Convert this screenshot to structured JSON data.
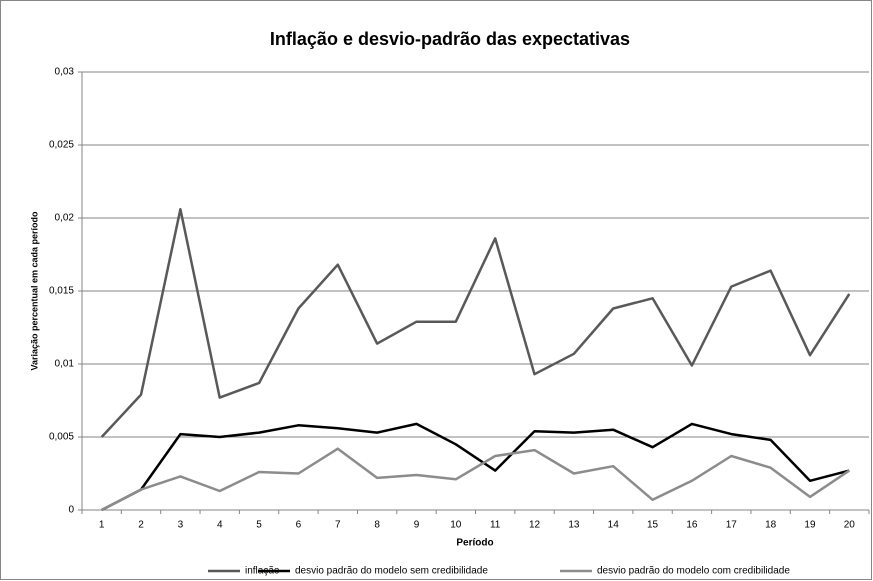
{
  "chart_data": {
    "type": "line",
    "title": "Inflação e desvio-padrão das expectativas",
    "x_label": "Período",
    "y_label": "Variação percentual em cada período",
    "categories": [
      "1",
      "2",
      "3",
      "4",
      "5",
      "6",
      "7",
      "8",
      "9",
      "10",
      "11",
      "12",
      "13",
      "14",
      "15",
      "16",
      "17",
      "18",
      "19",
      "20"
    ],
    "series": [
      {
        "name": "inflação",
        "color": "#595959",
        "values": [
          0.005,
          0.0079,
          0.0206,
          0.0077,
          0.0087,
          0.0138,
          0.0168,
          0.0114,
          0.0129,
          0.0129,
          0.0186,
          0.0093,
          0.0107,
          0.0138,
          0.0145,
          0.0099,
          0.0153,
          0.0164,
          0.0106,
          0.0148
        ]
      },
      {
        "name": "desvio padrão do modelo sem credibilidade",
        "color": "#000000",
        "values": [
          0,
          0.0014,
          0.0052,
          0.005,
          0.0053,
          0.0058,
          0.0056,
          0.0053,
          0.0059,
          0.0045,
          0.0027,
          0.0054,
          0.0053,
          0.0055,
          0.0043,
          0.0059,
          0.0052,
          0.0048,
          0.002,
          0.0027
        ]
      },
      {
        "name": "desvio padrão do modelo com credibilidade",
        "color": "#8c8c8c",
        "values": [
          0,
          0.0014,
          0.0023,
          0.0013,
          0.0026,
          0.0025,
          0.0042,
          0.0022,
          0.0024,
          0.0021,
          0.0037,
          0.0041,
          0.0025,
          0.003,
          0.0007,
          0.002,
          0.0037,
          0.0029,
          0.0009,
          0.0027
        ]
      }
    ],
    "ylim": [
      0,
      0.03
    ],
    "yticks": [
      0,
      {
        "value": 0.005,
        "label": "0,005"
      },
      {
        "value": 0.01,
        "label": "0,01"
      },
      {
        "value": 0.015,
        "label": "0,015"
      },
      {
        "value": 0.02,
        "label": "0,02"
      },
      {
        "value": 0.025,
        "label": "0,025"
      },
      {
        "value": 0.03,
        "label": "0,03"
      }
    ],
    "grid": true
  }
}
